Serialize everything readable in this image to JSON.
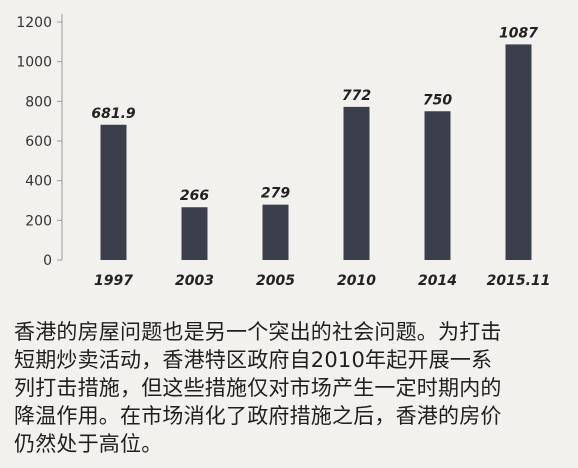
{
  "chart_data": {
    "type": "bar",
    "title": "",
    "xlabel": "",
    "ylabel": "",
    "categories": [
      "1997",
      "2003",
      "2005",
      "2010",
      "2014",
      "2015.11"
    ],
    "values": [
      681.9,
      266,
      279,
      772,
      750,
      1087
    ],
    "data_labels": [
      "681.9",
      "266",
      "279",
      "772",
      "750",
      "1087"
    ],
    "ylim": [
      0,
      1200
    ],
    "yticks": [
      0,
      200,
      400,
      600,
      800,
      1000,
      1200
    ],
    "ytick_labels": [
      "0",
      "200",
      "400",
      "600",
      "800",
      "1000",
      "1200"
    ],
    "grid": false,
    "bar_color": "#3a3f4b"
  },
  "caption": {
    "lines": [
      "香港的房屋问题也是另一个突出的社会问题。为打击",
      "短期炒卖活动，香港特区政府自2010年起开展一系",
      "列打击措施，但这些措施仅对市场产生一定时期内的",
      "降温作用。在市场消化了政府措施之后，香港的房价",
      "仍然处于高位。"
    ]
  }
}
